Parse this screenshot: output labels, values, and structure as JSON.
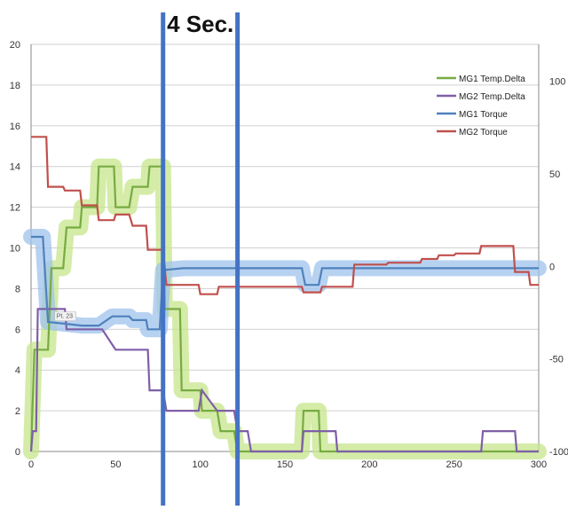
{
  "chart_data": {
    "type": "line",
    "title": "",
    "xlabel": "",
    "ylabel": "",
    "y2label": "",
    "xlim": [
      0,
      300
    ],
    "ylim": [
      0,
      20
    ],
    "y2lim": [
      -100,
      120
    ],
    "x_ticks": [
      "0",
      "50",
      "100",
      "150",
      "200",
      "250",
      "300"
    ],
    "y_ticks": [
      "0",
      "2",
      "4",
      "6",
      "8",
      "10",
      "12",
      "14",
      "16",
      "18",
      "20"
    ],
    "y2_ticks": [
      "-100",
      "-50",
      "0",
      "50",
      "100"
    ],
    "grid": "horizontal",
    "legend": "top-right",
    "annotation": "4 Sec.",
    "marker_x": [
      78,
      122
    ],
    "point_note": "Pt. 23",
    "series": [
      {
        "name": "MG1 Temp.Delta",
        "axis": "left",
        "color": "#77ab43",
        "glow": "#c6e58a",
        "points": [
          [
            0,
            0
          ],
          [
            2,
            5
          ],
          [
            10,
            5
          ],
          [
            12,
            9
          ],
          [
            19,
            9
          ],
          [
            21,
            11
          ],
          [
            29,
            11
          ],
          [
            30,
            12
          ],
          [
            39,
            12
          ],
          [
            40,
            14
          ],
          [
            49,
            14
          ],
          [
            50,
            12
          ],
          [
            58,
            12
          ],
          [
            60,
            13
          ],
          [
            69,
            13
          ],
          [
            70,
            14
          ],
          [
            78,
            14
          ],
          [
            79,
            7
          ],
          [
            88,
            7
          ],
          [
            89,
            3
          ],
          [
            100,
            3
          ],
          [
            101,
            2
          ],
          [
            110,
            2
          ],
          [
            112,
            1
          ],
          [
            120,
            1
          ],
          [
            122,
            0
          ],
          [
            160,
            0
          ],
          [
            161,
            2
          ],
          [
            170,
            2
          ],
          [
            171,
            0
          ],
          [
            300,
            0
          ]
        ]
      },
      {
        "name": "MG2 Temp.Delta",
        "axis": "left",
        "color": "#7f5fa8",
        "points": [
          [
            0,
            0
          ],
          [
            1,
            1
          ],
          [
            3,
            1
          ],
          [
            4,
            7
          ],
          [
            20,
            7
          ],
          [
            21,
            6
          ],
          [
            40,
            6
          ],
          [
            41,
            6
          ],
          [
            42,
            6
          ],
          [
            50,
            5
          ],
          [
            69,
            5
          ],
          [
            70,
            3
          ],
          [
            78,
            3
          ],
          [
            80,
            2
          ],
          [
            99,
            2
          ],
          [
            101,
            3
          ],
          [
            110,
            2
          ],
          [
            120,
            2
          ],
          [
            122,
            1
          ],
          [
            128,
            1
          ],
          [
            130,
            0
          ],
          [
            160,
            0
          ],
          [
            161,
            1
          ],
          [
            180,
            1
          ],
          [
            181,
            0
          ],
          [
            266,
            0
          ],
          [
            267,
            1
          ],
          [
            286,
            1
          ],
          [
            287,
            0
          ],
          [
            300,
            0
          ]
        ]
      },
      {
        "name": "MG1 Torque",
        "axis": "right",
        "color": "#4f81bd",
        "glow": "#9fc3ec",
        "points": [
          [
            0,
            16
          ],
          [
            7,
            16
          ],
          [
            10,
            -30
          ],
          [
            20,
            -31
          ],
          [
            30,
            -32
          ],
          [
            40,
            -32
          ],
          [
            48,
            -27
          ],
          [
            58,
            -27
          ],
          [
            60,
            -29
          ],
          [
            68,
            -29
          ],
          [
            69,
            -34
          ],
          [
            76,
            -34
          ],
          [
            78,
            -2
          ],
          [
            90,
            -1
          ],
          [
            120,
            -1
          ],
          [
            160,
            -1
          ],
          [
            162,
            -10
          ],
          [
            170,
            -10
          ],
          [
            172,
            -1
          ],
          [
            300,
            -1
          ]
        ]
      },
      {
        "name": "MG2 Torque",
        "axis": "right",
        "color": "#c0504d",
        "points": [
          [
            0,
            70
          ],
          [
            9,
            70
          ],
          [
            10,
            43
          ],
          [
            19,
            43
          ],
          [
            20,
            41
          ],
          [
            29,
            41
          ],
          [
            30,
            33
          ],
          [
            39,
            33
          ],
          [
            40,
            25
          ],
          [
            49,
            25
          ],
          [
            50,
            28
          ],
          [
            58,
            28
          ],
          [
            60,
            22
          ],
          [
            68,
            22
          ],
          [
            69,
            9
          ],
          [
            78,
            9
          ],
          [
            80,
            -10
          ],
          [
            99,
            -10
          ],
          [
            100,
            -15
          ],
          [
            110,
            -15
          ],
          [
            111,
            -11
          ],
          [
            160,
            -11
          ],
          [
            161,
            -14
          ],
          [
            171,
            -14
          ],
          [
            172,
            -11
          ],
          [
            190,
            -11
          ],
          [
            191,
            1
          ],
          [
            210,
            1
          ],
          [
            211,
            2
          ],
          [
            230,
            2
          ],
          [
            231,
            4
          ],
          [
            240,
            4
          ],
          [
            241,
            6
          ],
          [
            250,
            6
          ],
          [
            251,
            7
          ],
          [
            265,
            7
          ],
          [
            266,
            11
          ],
          [
            285,
            11
          ],
          [
            286,
            -3
          ],
          [
            294,
            -3
          ],
          [
            295,
            -10
          ],
          [
            300,
            -10
          ]
        ]
      }
    ]
  }
}
